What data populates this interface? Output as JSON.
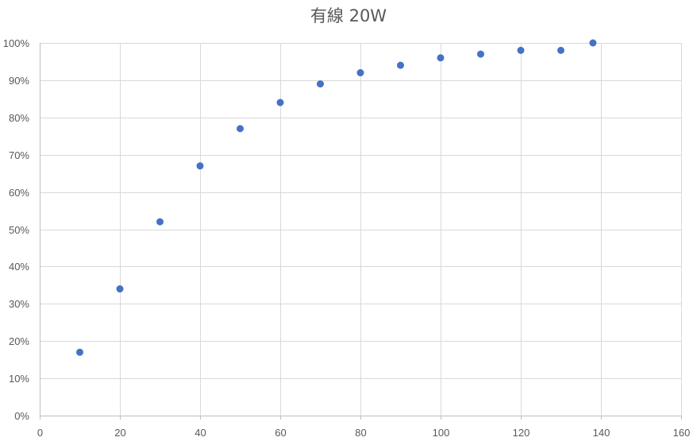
{
  "chart_data": {
    "type": "scatter",
    "title": "有線 20W",
    "xlabel": "",
    "ylabel": "",
    "xlim": [
      0,
      160
    ],
    "ylim": [
      0,
      1
    ],
    "x_ticks": [
      0,
      20,
      40,
      60,
      80,
      100,
      120,
      140,
      160
    ],
    "x_tick_labels": [
      "0",
      "20",
      "40",
      "60",
      "80",
      "100",
      "120",
      "140",
      "160"
    ],
    "y_ticks": [
      0,
      0.1,
      0.2,
      0.3,
      0.4,
      0.5,
      0.6,
      0.7,
      0.8,
      0.9,
      1.0
    ],
    "y_tick_labels": [
      "0%",
      "10%",
      "20%",
      "30%",
      "40%",
      "50%",
      "60%",
      "70%",
      "80%",
      "90%",
      "100%"
    ],
    "grid": true,
    "legend": "none",
    "series": [
      {
        "color": "#4472c4",
        "points": [
          {
            "x": 10,
            "y": 0.17
          },
          {
            "x": 20,
            "y": 0.34
          },
          {
            "x": 30,
            "y": 0.52
          },
          {
            "x": 40,
            "y": 0.67
          },
          {
            "x": 50,
            "y": 0.77
          },
          {
            "x": 60,
            "y": 0.84
          },
          {
            "x": 70,
            "y": 0.89
          },
          {
            "x": 80,
            "y": 0.92
          },
          {
            "x": 90,
            "y": 0.94
          },
          {
            "x": 100,
            "y": 0.96
          },
          {
            "x": 110,
            "y": 0.97
          },
          {
            "x": 120,
            "y": 0.98
          },
          {
            "x": 130,
            "y": 0.98
          },
          {
            "x": 138,
            "y": 1.0
          }
        ]
      }
    ]
  }
}
